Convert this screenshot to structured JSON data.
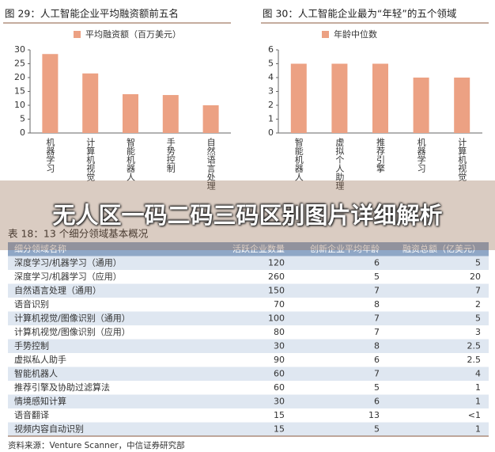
{
  "chart_data": [
    {
      "type": "bar",
      "title": "图 29：人工智能企业平均融资额前五名",
      "categories": [
        "机器学习",
        "计算机视觉",
        "智能机器人",
        "手势控制",
        "自然语言处理"
      ],
      "series": [
        {
          "name": "平均融资额（百万美元）",
          "color": "#eca183",
          "values": [
            28.5,
            21.5,
            14,
            13.7,
            10
          ]
        }
      ],
      "ylim": [
        0,
        30
      ],
      "yticks": [
        0,
        5,
        10,
        15,
        20,
        25,
        30
      ]
    },
    {
      "type": "bar",
      "title": "图 30：人工智能企业最为“年轻”的五个领域",
      "categories": [
        "智能机器人",
        "虚拟个人助理",
        "推荐引擎",
        "机器学习",
        "计算机视觉"
      ],
      "series": [
        {
          "name": "年龄中位数",
          "color": "#eca183",
          "values": [
            5,
            5,
            5,
            4,
            4
          ]
        }
      ],
      "ylim": [
        0,
        6
      ],
      "yticks": [
        0,
        1,
        2,
        3,
        4,
        5,
        6
      ]
    }
  ],
  "table": {
    "title": "表 18：13 个细分领域基本概况",
    "header": [
      "细分领域名称",
      "活跃企业数量",
      "创新企业平均年龄",
      "融资总额（亿美元）"
    ],
    "rows": [
      [
        "深度学习/机器学习（通用）",
        120,
        6,
        5
      ],
      [
        "深度学习/机器学习（应用）",
        260,
        5,
        20
      ],
      [
        "自然语言处理（通用）",
        150,
        7,
        7
      ],
      [
        "语音识别",
        70,
        8,
        2
      ],
      [
        "计算机视觉/图像识别（通用）",
        100,
        7,
        5
      ],
      [
        "计算机视觉/图像识别（应用）",
        80,
        7,
        3
      ],
      [
        "手势控制",
        30,
        8,
        2.5
      ],
      [
        "虚拟私人助手",
        90,
        6,
        2.5
      ],
      [
        "智能机器人",
        60,
        7,
        4
      ],
      [
        "推荐引擎及协助过滤算法",
        60,
        5,
        1
      ],
      [
        "情境感知计算",
        30,
        6,
        1
      ],
      [
        "语音翻译",
        15,
        13,
        "<1"
      ],
      [
        "视频内容自动识别",
        15,
        5,
        1
      ]
    ],
    "source": "资料来源：Venture Scanner，中信证券研究部"
  },
  "overlay_title": "无人区一码二码三码区别图片详细解析"
}
